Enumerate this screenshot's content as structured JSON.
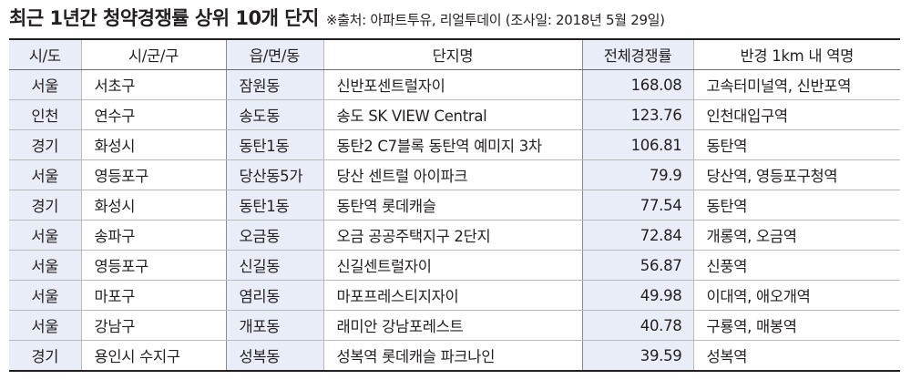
{
  "header": {
    "title": "최근 1년간 청약경쟁률 상위 10개 단지",
    "source": "※출처: 아파트투유, 리얼투데이 (조사일: 2018년 5월 29일)"
  },
  "table": {
    "columns": [
      "시/도",
      "시/군/구",
      "읍/면/동",
      "단지명",
      "전체경쟁률",
      "반경 1km 내 역명"
    ],
    "rows": [
      {
        "sido": "서울",
        "sigungu": "서초구",
        "dong": "잠원동",
        "complex": "신반포센트럴자이",
        "rate": "168.08",
        "stations": "고속터미널역, 신반포역"
      },
      {
        "sido": "인천",
        "sigungu": "연수구",
        "dong": "송도동",
        "complex": "송도 SK VIEW Central",
        "rate": "123.76",
        "stations": "인천대입구역"
      },
      {
        "sido": "경기",
        "sigungu": "화성시",
        "dong": "동탄1동",
        "complex": "동탄2 C7블록 동탄역 예미지 3차",
        "rate": "106.81",
        "stations": "동탄역"
      },
      {
        "sido": "서울",
        "sigungu": "영등포구",
        "dong": "당산동5가",
        "complex": "당산 센트럴 아이파크",
        "rate": "79.9",
        "stations": "당산역, 영등포구청역"
      },
      {
        "sido": "경기",
        "sigungu": "화성시",
        "dong": "동탄1동",
        "complex": "동탄역 롯데캐슬",
        "rate": "77.54",
        "stations": "동탄역"
      },
      {
        "sido": "서울",
        "sigungu": "송파구",
        "dong": "오금동",
        "complex": "오금 공공주택지구 2단지",
        "rate": "72.84",
        "stations": "개롱역, 오금역"
      },
      {
        "sido": "서울",
        "sigungu": "영등포구",
        "dong": "신길동",
        "complex": "신길센트럴자이",
        "rate": "56.87",
        "stations": "신풍역"
      },
      {
        "sido": "서울",
        "sigungu": "마포구",
        "dong": "염리동",
        "complex": "마포프레스티지자이",
        "rate": "49.98",
        "stations": "이대역, 애오개역"
      },
      {
        "sido": "서울",
        "sigungu": "강남구",
        "dong": "개포동",
        "complex": "래미안 강남포레스트",
        "rate": "40.78",
        "stations": "구룡역, 매봉역"
      },
      {
        "sido": "경기",
        "sigungu": "용인시 수지구",
        "dong": "성복동",
        "complex": "성복역 롯데캐슬 파크나인",
        "rate": "39.59",
        "stations": "성복역"
      }
    ]
  },
  "colors": {
    "shade": "#e8edf7",
    "text": "#231f20",
    "rule": "#231f20"
  }
}
